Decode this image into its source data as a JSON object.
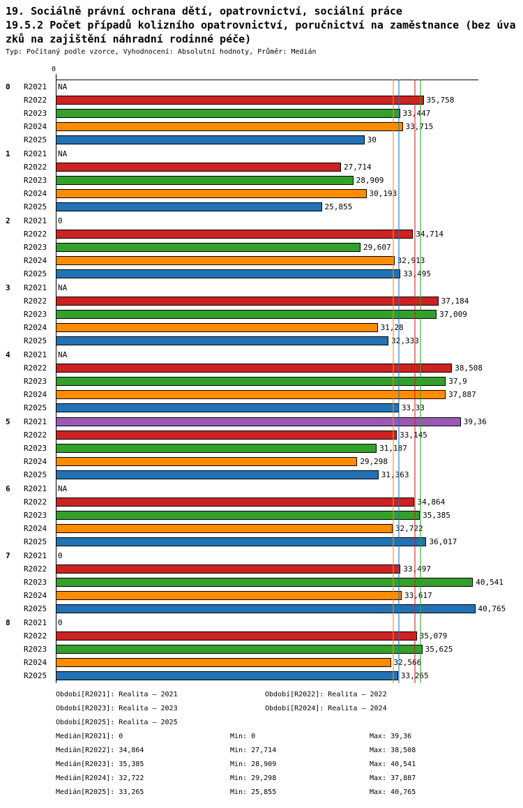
{
  "header": {
    "title_line1": "19. Sociálně právní ochrana dětí, opatrovnictví, sociální práce",
    "title_line2": "19.5.2 Počet případů kolizního opatrovnictví, poručnictví na zaměstnance (bez úva",
    "title_line3": "zků na zajištění náhradní rodinné péče)",
    "subtitle": "Typ: Počítaný podle vzorce, Vyhodnocení: Absolutní hodnoty, Průměr: Medián"
  },
  "chart_data": {
    "type": "bar",
    "orientation": "horizontal",
    "x_axis": {
      "origin_label": "0",
      "max": 41
    },
    "series": [
      "R2021",
      "R2022",
      "R2023",
      "R2024",
      "R2025"
    ],
    "series_colors": {
      "R2021": "#9B59B6",
      "R2022": "#CC2222",
      "R2023": "#33A02C",
      "R2024": "#FF8C00",
      "R2025": "#2272B6"
    },
    "median_lines": [
      {
        "series": "R2021",
        "value": 0
      },
      {
        "series": "R2022",
        "value": 34.864
      },
      {
        "series": "R2023",
        "value": 35.385
      },
      {
        "series": "R2024",
        "value": 32.722
      },
      {
        "series": "R2025",
        "value": 33.265
      }
    ],
    "groups": [
      {
        "label": "0",
        "bars": [
          {
            "series": "R2021",
            "value": null,
            "label": "NA"
          },
          {
            "series": "R2022",
            "value": 35.758,
            "label": "35,758"
          },
          {
            "series": "R2023",
            "value": 33.447,
            "label": "33,447"
          },
          {
            "series": "R2024",
            "value": 33.715,
            "label": "33,715"
          },
          {
            "series": "R2025",
            "value": 30,
            "label": "30"
          }
        ]
      },
      {
        "label": "1",
        "bars": [
          {
            "series": "R2021",
            "value": null,
            "label": "NA"
          },
          {
            "series": "R2022",
            "value": 27.714,
            "label": "27,714"
          },
          {
            "series": "R2023",
            "value": 28.909,
            "label": "28,909"
          },
          {
            "series": "R2024",
            "value": 30.193,
            "label": "30,193"
          },
          {
            "series": "R2025",
            "value": 25.855,
            "label": "25,855"
          }
        ]
      },
      {
        "label": "2",
        "bars": [
          {
            "series": "R2021",
            "value": 0,
            "label": "0"
          },
          {
            "series": "R2022",
            "value": 34.714,
            "label": "34,714"
          },
          {
            "series": "R2023",
            "value": 29.607,
            "label": "29,607"
          },
          {
            "series": "R2024",
            "value": 32.913,
            "label": "32,913"
          },
          {
            "series": "R2025",
            "value": 33.495,
            "label": "33,495"
          }
        ]
      },
      {
        "label": "3",
        "bars": [
          {
            "series": "R2021",
            "value": null,
            "label": "NA"
          },
          {
            "series": "R2022",
            "value": 37.184,
            "label": "37,184"
          },
          {
            "series": "R2023",
            "value": 37.009,
            "label": "37,009"
          },
          {
            "series": "R2024",
            "value": 31.28,
            "label": "31,28"
          },
          {
            "series": "R2025",
            "value": 32.333,
            "label": "32,333"
          }
        ]
      },
      {
        "label": "4",
        "bars": [
          {
            "series": "R2021",
            "value": null,
            "label": "NA"
          },
          {
            "series": "R2022",
            "value": 38.508,
            "label": "38,508"
          },
          {
            "series": "R2023",
            "value": 37.9,
            "label": "37,9"
          },
          {
            "series": "R2024",
            "value": 37.887,
            "label": "37,887"
          },
          {
            "series": "R2025",
            "value": 33.33,
            "label": "33,33"
          }
        ]
      },
      {
        "label": "5",
        "bars": [
          {
            "series": "R2021",
            "value": 39.36,
            "label": "39,36"
          },
          {
            "series": "R2022",
            "value": 33.145,
            "label": "33,145"
          },
          {
            "series": "R2023",
            "value": 31.187,
            "label": "31,187"
          },
          {
            "series": "R2024",
            "value": 29.298,
            "label": "29,298"
          },
          {
            "series": "R2025",
            "value": 31.363,
            "label": "31,363"
          }
        ]
      },
      {
        "label": "6",
        "bars": [
          {
            "series": "R2021",
            "value": null,
            "label": "NA"
          },
          {
            "series": "R2022",
            "value": 34.864,
            "label": "34,864"
          },
          {
            "series": "R2023",
            "value": 35.385,
            "label": "35,385"
          },
          {
            "series": "R2024",
            "value": 32.722,
            "label": "32,722"
          },
          {
            "series": "R2025",
            "value": 36.017,
            "label": "36,017"
          }
        ]
      },
      {
        "label": "7",
        "bars": [
          {
            "series": "R2021",
            "value": 0,
            "label": "0"
          },
          {
            "series": "R2022",
            "value": 33.497,
            "label": "33,497"
          },
          {
            "series": "R2023",
            "value": 40.541,
            "label": "40,541"
          },
          {
            "series": "R2024",
            "value": 33.617,
            "label": "33,617"
          },
          {
            "series": "R2025",
            "value": 40.765,
            "label": "40,765"
          }
        ]
      },
      {
        "label": "8",
        "bars": [
          {
            "series": "R2021",
            "value": 0,
            "label": "0"
          },
          {
            "series": "R2022",
            "value": 35.079,
            "label": "35,079"
          },
          {
            "series": "R2023",
            "value": 35.625,
            "label": "35,625"
          },
          {
            "series": "R2024",
            "value": 32.566,
            "label": "32,566"
          },
          {
            "series": "R2025",
            "value": 33.265,
            "label": "33,265"
          }
        ]
      }
    ]
  },
  "legend": {
    "periods": [
      "Období[R2021]: Realita – 2021",
      "Období[R2022]: Realita – 2022",
      "Období[R2023]: Realita – 2023",
      "Období[R2024]: Realita – 2024",
      "Období[R2025]: Realita – 2025"
    ],
    "stats": [
      {
        "median": "Medián[R2021]: 0",
        "min": "Min: 0",
        "max": "Max: 39,36"
      },
      {
        "median": "Medián[R2022]: 34,864",
        "min": "Min: 27,714",
        "max": "Max: 38,508"
      },
      {
        "median": "Medián[R2023]: 35,385",
        "min": "Min: 28,909",
        "max": "Max: 40,541"
      },
      {
        "median": "Medián[R2024]: 32,722",
        "min": "Min: 29,298",
        "max": "Max: 37,887"
      },
      {
        "median": "Medián[R2025]: 33,265",
        "min": "Min: 25,855",
        "max": "Max: 40,765"
      }
    ]
  }
}
